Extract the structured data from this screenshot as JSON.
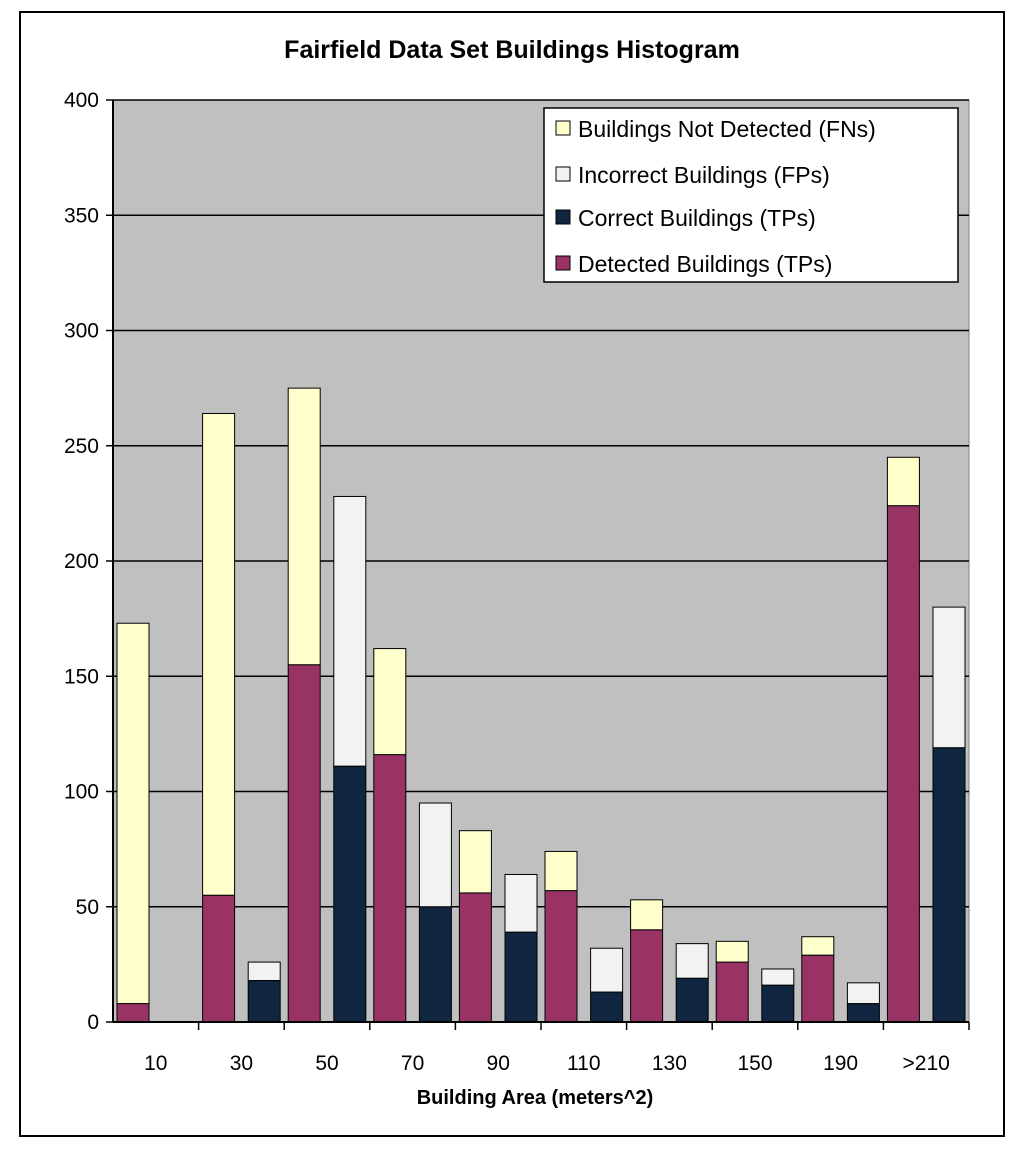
{
  "chart_data": {
    "type": "bar",
    "stacked": true,
    "title": "Fairfield Data Set  Buildings Histogram",
    "xlabel": "Building Area (meters^2)",
    "ylabel": "",
    "ylim": [
      0,
      400
    ],
    "yticks": [
      "0",
      "50",
      "100",
      "150",
      "200",
      "250",
      "300",
      "350",
      "400"
    ],
    "categories": [
      "10",
      "30",
      "50",
      "70",
      "90",
      "110",
      "130",
      "150",
      "190",
      ">210"
    ],
    "grid": true,
    "legend_position": "top-right",
    "colors": {
      "plot_bg": "#c0c0c0",
      "detected": "#993366",
      "not_detected": "#ffffcc",
      "correct": "#0f2540",
      "incorrect": "#f2f2f2"
    },
    "legend": [
      "Buildings Not Detected (FNs)",
      "Incorrect Buildings (FPs)",
      "Correct Buildings (TPs)",
      "Detected Buildings (TPs)"
    ],
    "groups": [
      {
        "label": "10",
        "detected": 8,
        "not_detected": 165,
        "correct": 0,
        "incorrect": 0
      },
      {
        "label": "30",
        "detected": 55,
        "not_detected": 209,
        "correct": 18,
        "incorrect": 8
      },
      {
        "label": "50",
        "detected": 155,
        "not_detected": 120,
        "correct": 111,
        "incorrect": 117
      },
      {
        "label": "70",
        "detected": 116,
        "not_detected": 46,
        "correct": 50,
        "incorrect": 45
      },
      {
        "label": "90",
        "detected": 56,
        "not_detected": 27,
        "correct": 39,
        "incorrect": 25
      },
      {
        "label": "110",
        "detected": 57,
        "not_detected": 17,
        "correct": 13,
        "incorrect": 19
      },
      {
        "label": "130",
        "detected": 40,
        "not_detected": 13,
        "correct": 19,
        "incorrect": 15
      },
      {
        "label": "150",
        "detected": 26,
        "not_detected": 9,
        "correct": 16,
        "incorrect": 7
      },
      {
        "label": "190",
        "detected": 29,
        "not_detected": 8,
        "correct": 8,
        "incorrect": 9
      },
      {
        "label": ">210",
        "detected": 224,
        "not_detected": 21,
        "correct": 119,
        "incorrect": 61
      }
    ]
  }
}
